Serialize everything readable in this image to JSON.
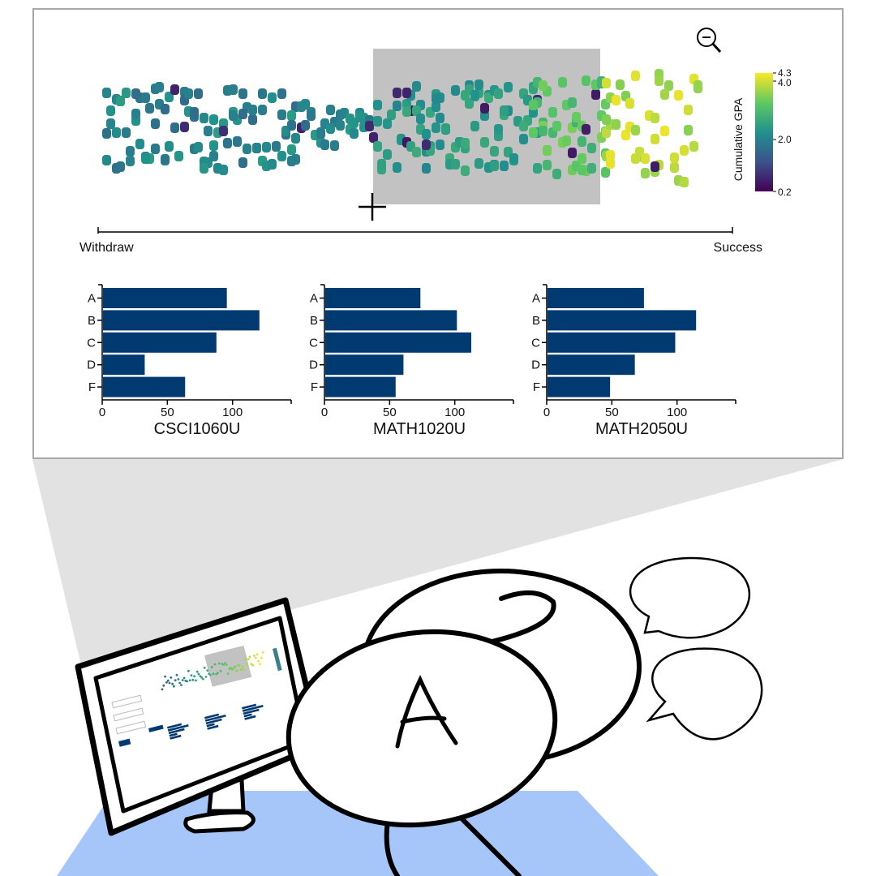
{
  "beeswarm": {
    "left_label": "Withdraw",
    "right_label": "Success",
    "zoom_icon": "zoom-out-icon",
    "cursor_icon": "crosshair-icon"
  },
  "colorbar": {
    "title": "Cumulative GPA",
    "ticks": [
      "4.3",
      "4.0",
      "2.0",
      "0.2"
    ],
    "palette": [
      "#440154",
      "#3b528b",
      "#21918c",
      "#5ec962",
      "#fde725"
    ]
  },
  "chart_data": [
    {
      "type": "bar",
      "title": "CSCI1060U",
      "categories": [
        "A",
        "B",
        "C",
        "D",
        "F"
      ],
      "values": [
        95,
        120,
        87,
        32,
        63
      ],
      "xticks": [
        "0",
        "50",
        "100"
      ],
      "xlim": [
        0,
        145
      ],
      "color": "#003a70"
    },
    {
      "type": "bar",
      "title": "MATH1020U",
      "categories": [
        "A",
        "B",
        "C",
        "D",
        "F"
      ],
      "values": [
        73,
        101,
        112,
        60,
        54
      ],
      "xticks": [
        "0",
        "50",
        "100"
      ],
      "xlim": [
        0,
        145
      ],
      "color": "#003a70"
    },
    {
      "type": "bar",
      "title": "MATH2050U",
      "categories": [
        "A",
        "B",
        "C",
        "D",
        "F"
      ],
      "values": [
        74,
        114,
        98,
        67,
        48
      ],
      "xticks": [
        "0",
        "50",
        "100"
      ],
      "xlim": [
        0,
        145
      ],
      "color": "#003a70"
    }
  ],
  "illustration": {
    "shirt_letter": "A",
    "mini_form_button": "Submit",
    "mini_course_labels": [
      "CSCI1060U",
      "MATH1020U",
      "MATH2050U"
    ]
  }
}
